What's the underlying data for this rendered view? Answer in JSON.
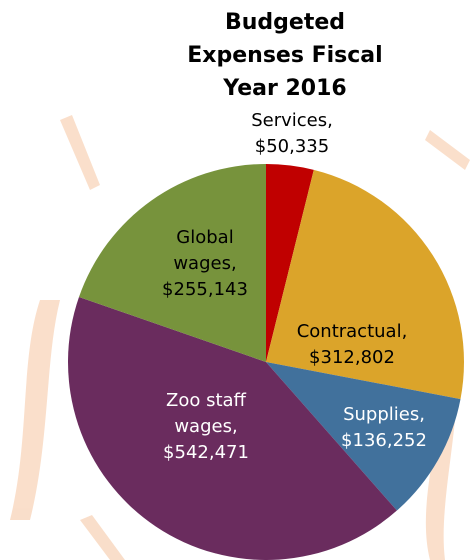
{
  "chart_data": {
    "type": "pie",
    "title": "Budgeted Expenses Fiscal Year 2016",
    "categories": [
      "Services,",
      "Contractual,",
      "Supplies,",
      "Zoo staff wages,",
      "Global wages,"
    ],
    "values": [
      50335,
      312802,
      136252,
      542471,
      255143
    ],
    "value_labels": [
      "$50,335",
      "$312,802",
      "$136,252",
      "$542,471",
      "$255,143"
    ],
    "colors": [
      "#c00000",
      "#dba42a",
      "#41719c",
      "#6a2c5e",
      "#77933c"
    ]
  }
}
